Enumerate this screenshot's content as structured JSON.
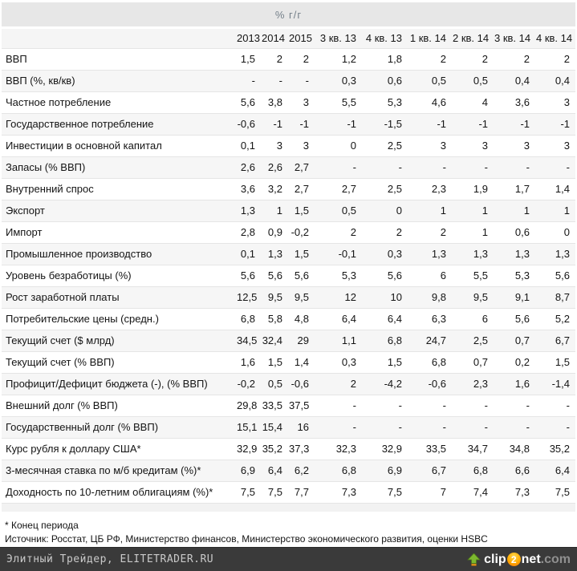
{
  "colors": {
    "title_band_bg": "#e7e7e7",
    "title_text": "#75808a",
    "header_bg": "#f5f5f5",
    "row_alt_bg": "#f6f6f6",
    "row_border": "#e5e5e5",
    "footer_bg": "#3a3a3a",
    "footer_text": "#c9c9c9",
    "logo_green": "#7cb82f",
    "logo_orange": "#ff9900",
    "logo_com_gray": "#8f8f8f"
  },
  "chart_data": {
    "type": "table",
    "title": "% г/г",
    "columns": [
      "2013",
      "2014",
      "2015",
      "3 кв. 13",
      "4 кв. 13",
      "1 кв. 14",
      "2 кв. 14",
      "3 кв. 14",
      "4 кв. 14"
    ],
    "rows": [
      {
        "label": "ВВП",
        "values": [
          "1,5",
          "2",
          "2",
          "1,2",
          "1,8",
          "2",
          "2",
          "2",
          "2"
        ]
      },
      {
        "label": "ВВП (%, кв/кв)",
        "values": [
          "-",
          "-",
          "-",
          "0,3",
          "0,6",
          "0,5",
          "0,5",
          "0,4",
          "0,4"
        ]
      },
      {
        "label": "Частное потребление",
        "values": [
          "5,6",
          "3,8",
          "3",
          "5,5",
          "5,3",
          "4,6",
          "4",
          "3,6",
          "3"
        ]
      },
      {
        "label": "Государственное потребление",
        "values": [
          "-0,6",
          "-1",
          "-1",
          "-1",
          "-1,5",
          "-1",
          "-1",
          "-1",
          "-1"
        ]
      },
      {
        "label": "Инвестиции в основной капитал",
        "values": [
          "0,1",
          "3",
          "3",
          "0",
          "2,5",
          "3",
          "3",
          "3",
          "3"
        ]
      },
      {
        "label": "Запасы (% ВВП)",
        "values": [
          "2,6",
          "2,6",
          "2,7",
          "-",
          "-",
          "-",
          "-",
          "-",
          "-"
        ]
      },
      {
        "label": "Внутренний спрос",
        "values": [
          "3,6",
          "3,2",
          "2,7",
          "2,7",
          "2,5",
          "2,3",
          "1,9",
          "1,7",
          "1,4"
        ]
      },
      {
        "label": "Экспорт",
        "values": [
          "1,3",
          "1",
          "1,5",
          "0,5",
          "0",
          "1",
          "1",
          "1",
          "1"
        ]
      },
      {
        "label": "Импорт",
        "values": [
          "2,8",
          "0,9",
          "-0,2",
          "2",
          "2",
          "2",
          "1",
          "0,6",
          "0"
        ]
      },
      {
        "label": "Промышленное производство",
        "values": [
          "0,1",
          "1,3",
          "1,5",
          "-0,1",
          "0,3",
          "1,3",
          "1,3",
          "1,3",
          "1,3"
        ]
      },
      {
        "label": "Уровень безработицы (%)",
        "values": [
          "5,6",
          "5,6",
          "5,6",
          "5,3",
          "5,6",
          "6",
          "5,5",
          "5,3",
          "5,6"
        ]
      },
      {
        "label": "Рост заработной платы",
        "values": [
          "12,5",
          "9,5",
          "9,5",
          "12",
          "10",
          "9,8",
          "9,5",
          "9,1",
          "8,7"
        ]
      },
      {
        "label": "Потребительские цены (средн.)",
        "values": [
          "6,8",
          "5,8",
          "4,8",
          "6,4",
          "6,4",
          "6,3",
          "6",
          "5,6",
          "5,2"
        ]
      },
      {
        "label": "Текущий счет ($ млрд)",
        "values": [
          "34,5",
          "32,4",
          "29",
          "1,1",
          "6,8",
          "24,7",
          "2,5",
          "0,7",
          "6,7"
        ]
      },
      {
        "label": "Текущий счет (% ВВП)",
        "values": [
          "1,6",
          "1,5",
          "1,4",
          "0,3",
          "1,5",
          "6,8",
          "0,7",
          "0,2",
          "1,5"
        ]
      },
      {
        "label": "Профицит/Дефицит бюджета (-), (% ВВП)",
        "values": [
          "-0,2",
          "0,5",
          "-0,6",
          "2",
          "-4,2",
          "-0,6",
          "2,3",
          "1,6",
          "-1,4"
        ]
      },
      {
        "label": "Внешний долг (% ВВП)",
        "values": [
          "29,8",
          "33,5",
          "37,5",
          "-",
          "-",
          "-",
          "-",
          "-",
          "-"
        ]
      },
      {
        "label": "Государственный долг (% ВВП)",
        "values": [
          "15,1",
          "15,4",
          "16",
          "-",
          "-",
          "-",
          "-",
          "-",
          "-"
        ]
      },
      {
        "label": "Курс рубля к доллару США*",
        "values": [
          "32,9",
          "35,2",
          "37,3",
          "32,3",
          "32,9",
          "33,5",
          "34,7",
          "34,8",
          "35,2"
        ]
      },
      {
        "label": "3-месячная ставка по м/б кредитам (%)*",
        "values": [
          "6,9",
          "6,4",
          "6,2",
          "6,8",
          "6,9",
          "6,7",
          "6,8",
          "6,6",
          "6,4"
        ]
      },
      {
        "label": "Доходность по 10-летним облигациям (%)*",
        "values": [
          "7,5",
          "7,5",
          "7,7",
          "7,3",
          "7,5",
          "7",
          "7,4",
          "7,3",
          "7,5"
        ]
      }
    ]
  },
  "footnotes": {
    "period_note": "* Конец периода",
    "source_note": "Источник: Росстат, ЦБ РФ, Министерство финансов, Министерство экономического развития, оценки HSBC"
  },
  "footer": {
    "site_credit": "Элитный Трейдер, ELITETRADER.RU",
    "logo": {
      "part_clip": "clip",
      "part_two": "2",
      "part_net": "net",
      "part_com": ".com"
    }
  }
}
